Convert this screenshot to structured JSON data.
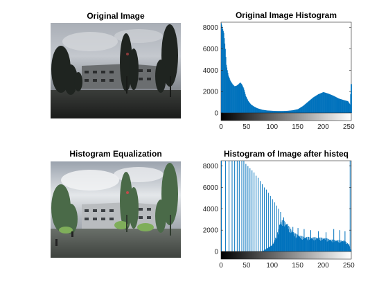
{
  "figure": {
    "colors": {
      "bar": "#0072bd",
      "axis": "#262626",
      "sky": "#b9bec6",
      "ground": "#2a2c2a"
    }
  },
  "panels": [
    {
      "title": "Original Image",
      "content": "photo of cloudy sky over a building with trees (dark, low contrast)"
    },
    {
      "title": "Histogram Equalization",
      "content": "same photo after histogram equalization (brighter, higher contrast)"
    }
  ],
  "chart_data": [
    {
      "type": "bar",
      "title": "Original Image Histogram",
      "xlim": [
        0,
        255
      ],
      "ylim": [
        0,
        8500
      ],
      "xticks": [
        0,
        50,
        100,
        150,
        200,
        250
      ],
      "yticks": [
        0,
        2000,
        4000,
        6000,
        8000
      ],
      "xlabel": "",
      "ylabel": "",
      "colorbar": "grayscale 0-255 below x-axis",
      "profile": [
        [
          0,
          8400
        ],
        [
          5,
          7500
        ],
        [
          8,
          6000
        ],
        [
          10,
          4500
        ],
        [
          14,
          3500
        ],
        [
          18,
          3000
        ],
        [
          22,
          2700
        ],
        [
          26,
          2500
        ],
        [
          30,
          2550
        ],
        [
          34,
          2700
        ],
        [
          37,
          2850
        ],
        [
          40,
          2700
        ],
        [
          44,
          2300
        ],
        [
          48,
          1600
        ],
        [
          53,
          1100
        ],
        [
          58,
          800
        ],
        [
          64,
          600
        ],
        [
          70,
          450
        ],
        [
          80,
          300
        ],
        [
          90,
          230
        ],
        [
          100,
          200
        ],
        [
          110,
          180
        ],
        [
          120,
          180
        ],
        [
          130,
          200
        ],
        [
          140,
          250
        ],
        [
          150,
          350
        ],
        [
          160,
          650
        ],
        [
          170,
          1050
        ],
        [
          180,
          1450
        ],
        [
          190,
          1750
        ],
        [
          200,
          1950
        ],
        [
          210,
          1800
        ],
        [
          220,
          1600
        ],
        [
          230,
          1350
        ],
        [
          240,
          1200
        ],
        [
          248,
          1100
        ],
        [
          252,
          800
        ],
        [
          254,
          2700
        ]
      ]
    },
    {
      "type": "bar",
      "title": "Histogram of Image after histeq",
      "xlim": [
        0,
        255
      ],
      "ylim": [
        0,
        8500
      ],
      "xticks": [
        0,
        50,
        100,
        150,
        200,
        250
      ],
      "yticks": [
        0,
        2000,
        4000,
        6000,
        8000
      ],
      "xlabel": "",
      "ylabel": "",
      "colorbar": "grayscale 0-255 below x-axis",
      "spikes": [
        [
          0,
          8500
        ],
        [
          8,
          8500
        ],
        [
          15,
          8500
        ],
        [
          21,
          8500
        ],
        [
          26,
          8500
        ],
        [
          31,
          8500
        ],
        [
          35,
          8500
        ],
        [
          40,
          8500
        ],
        [
          44,
          8500
        ],
        [
          48,
          8200
        ],
        [
          52,
          8000
        ],
        [
          56,
          7800
        ],
        [
          60,
          7600
        ],
        [
          64,
          7400
        ],
        [
          68,
          7100
        ],
        [
          72,
          6900
        ],
        [
          76,
          6600
        ],
        [
          80,
          6300
        ],
        [
          84,
          6000
        ],
        [
          88,
          5800
        ],
        [
          92,
          5500
        ],
        [
          96,
          5200
        ],
        [
          100,
          4900
        ],
        [
          104,
          4600
        ],
        [
          108,
          4300
        ],
        [
          112,
          4000
        ],
        [
          116,
          3700
        ],
        [
          122,
          3200
        ],
        [
          130,
          2600
        ],
        [
          140,
          2300
        ],
        [
          150,
          2200
        ],
        [
          162,
          2100
        ],
        [
          175,
          2000
        ],
        [
          190,
          1900
        ],
        [
          205,
          1800
        ],
        [
          220,
          2100
        ],
        [
          232,
          2000
        ],
        [
          242,
          1900
        ],
        [
          252,
          8500
        ]
      ],
      "baseline": [
        [
          0,
          0
        ],
        [
          40,
          0
        ],
        [
          80,
          0
        ],
        [
          100,
          600
        ],
        [
          110,
          1800
        ],
        [
          115,
          2800
        ],
        [
          120,
          3000
        ],
        [
          128,
          2700
        ],
        [
          135,
          2200
        ],
        [
          145,
          1700
        ],
        [
          160,
          1400
        ],
        [
          180,
          1350
        ],
        [
          200,
          1300
        ],
        [
          220,
          1100
        ],
        [
          240,
          1050
        ],
        [
          250,
          700
        ],
        [
          255,
          0
        ]
      ]
    }
  ]
}
